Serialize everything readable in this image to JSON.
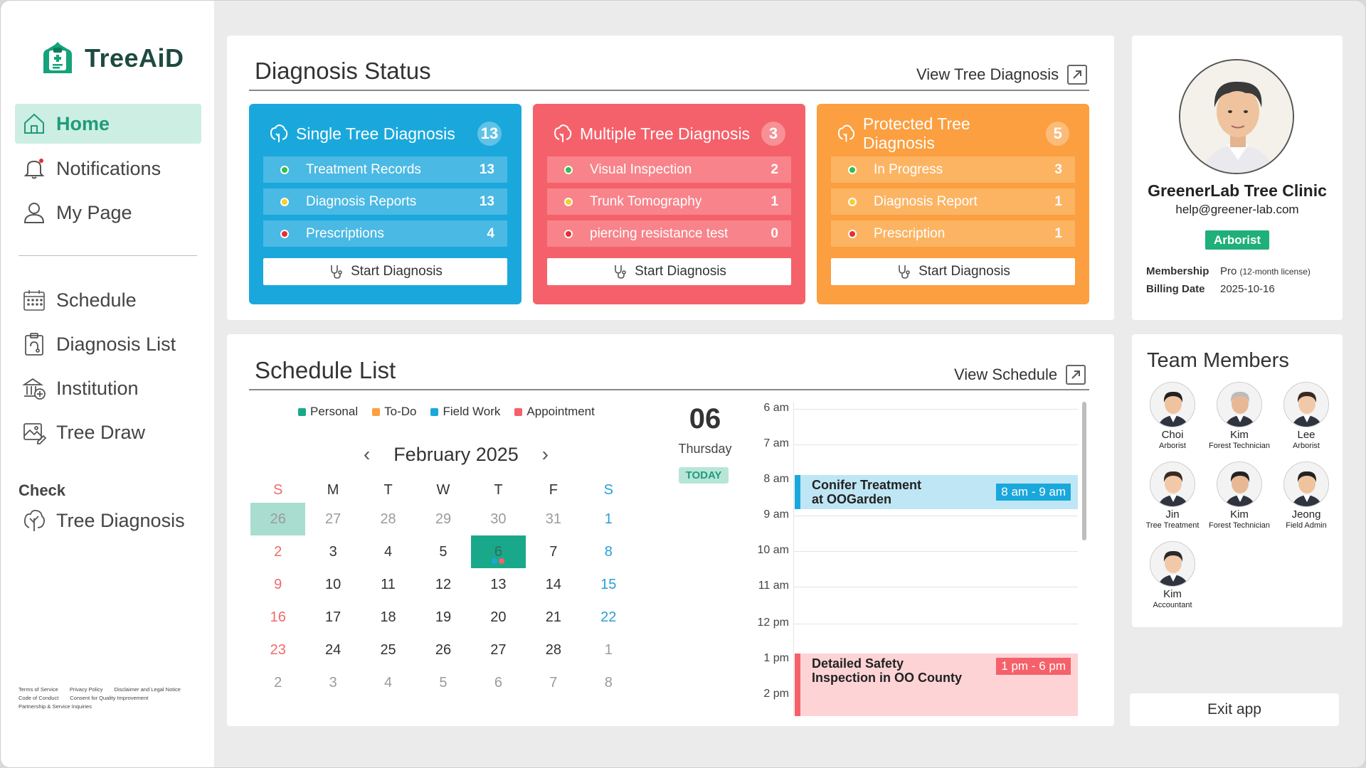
{
  "app": {
    "name": "TreeAiD"
  },
  "sidebar": {
    "nav": [
      {
        "label": "Home",
        "icon": "home-icon",
        "active": true
      },
      {
        "label": "Notifications",
        "icon": "bell-icon"
      },
      {
        "label": "My Page",
        "icon": "user-icon"
      }
    ],
    "menu": [
      {
        "label": "Schedule",
        "icon": "calendar-icon"
      },
      {
        "label": "Diagnosis List",
        "icon": "clipboard-icon"
      },
      {
        "label": "Institution",
        "icon": "institution-icon"
      },
      {
        "label": "Tree Draw",
        "icon": "image-edit-icon"
      }
    ],
    "check_label": "Check",
    "check_item": {
      "label": "Tree Diagnosis",
      "icon": "tree-icon"
    },
    "footer_links": [
      "Terms of Service",
      "Privacy Policy",
      "Disclaimer and Legal Notice",
      "Code of Conduct",
      "Consent for Quality Improvement",
      "Partnership & Service Inquiries"
    ]
  },
  "diagnosis_status": {
    "title": "Diagnosis Status",
    "view_link": "View Tree Diagnosis",
    "start_label": "Start Diagnosis",
    "boxes": [
      {
        "title": "Single Tree Diagnosis",
        "count": "13",
        "color": "#1aa8dc",
        "rows": [
          {
            "label": "Treatment Records",
            "value": "13",
            "dot": "green"
          },
          {
            "label": "Diagnosis Reports",
            "value": "13",
            "dot": "yellow"
          },
          {
            "label": "Prescriptions",
            "value": "4",
            "dot": "red"
          }
        ]
      },
      {
        "title": "Multiple Tree Diagnosis",
        "count": "3",
        "color": "#f5616a",
        "rows": [
          {
            "label": "Visual Inspection",
            "value": "2",
            "dot": "green"
          },
          {
            "label": "Trunk Tomography",
            "value": "1",
            "dot": "yellow"
          },
          {
            "label": "piercing resistance test",
            "value": "0",
            "dot": "red"
          }
        ]
      },
      {
        "title": "Protected Tree Diagnosis",
        "count": "5",
        "color": "#fb9f40",
        "rows": [
          {
            "label": "In Progress",
            "value": "3",
            "dot": "green"
          },
          {
            "label": "Diagnosis Report",
            "value": "1",
            "dot": "yellow"
          },
          {
            "label": "Prescription",
            "value": "1",
            "dot": "red"
          }
        ]
      }
    ]
  },
  "profile": {
    "name": "GreenerLab Tree Clinic",
    "email": "help@greener-lab.com",
    "role": "Arborist",
    "membership_label": "Membership",
    "membership_value": "Pro",
    "membership_note": "(12-month license)",
    "billing_label": "Billing Date",
    "billing_value": "2025-10-16"
  },
  "schedule": {
    "title": "Schedule List",
    "view_link": "View Schedule",
    "legend": [
      {
        "label": "Personal",
        "color": "#1aa88a"
      },
      {
        "label": "To-Do",
        "color": "#fb9f40"
      },
      {
        "label": "Field Work",
        "color": "#1aa8dc"
      },
      {
        "label": "Appointment",
        "color": "#f5616a"
      }
    ],
    "month_label": "February 2025",
    "weekdays": [
      "S",
      "M",
      "T",
      "W",
      "T",
      "F",
      "S"
    ],
    "weeks": [
      [
        "26",
        "27",
        "28",
        "29",
        "30",
        "31",
        "1"
      ],
      [
        "2",
        "3",
        "4",
        "5",
        "6",
        "7",
        "8"
      ],
      [
        "9",
        "10",
        "11",
        "12",
        "13",
        "14",
        "15"
      ],
      [
        "16",
        "17",
        "18",
        "19",
        "20",
        "21",
        "22"
      ],
      [
        "23",
        "24",
        "25",
        "26",
        "27",
        "28",
        "1"
      ],
      [
        "2",
        "3",
        "4",
        "5",
        "6",
        "7",
        "8"
      ]
    ],
    "day_number": "06",
    "day_name": "Thursday",
    "today_label": "TODAY",
    "hours": [
      "6 am",
      "7 am",
      "8 am",
      "9 am",
      "10 am",
      "11 am",
      "12 pm",
      "1 pm",
      "2 pm"
    ],
    "events": [
      {
        "title_line1": "Conifer Treatment",
        "title_line2": "at OOGarden",
        "time": "8 am - 9 am",
        "color": "#1aa8dc"
      },
      {
        "title_line1": "Detailed Safety",
        "title_line2": "Inspection in OO County",
        "time": "1 pm - 6 pm",
        "color": "#f5616a"
      }
    ]
  },
  "team": {
    "title": "Team Members",
    "members": [
      {
        "name": "Choi",
        "role": "Arborist"
      },
      {
        "name": "Kim",
        "role": "Forest Technician"
      },
      {
        "name": "Lee",
        "role": "Arborist"
      },
      {
        "name": "Jin",
        "role": "Tree Treatment"
      },
      {
        "name": "Kim",
        "role": "Forest Technician"
      },
      {
        "name": "Jeong",
        "role": "Field Admin"
      },
      {
        "name": "Kim",
        "role": "Accountant"
      }
    ]
  },
  "exit_label": "Exit app"
}
